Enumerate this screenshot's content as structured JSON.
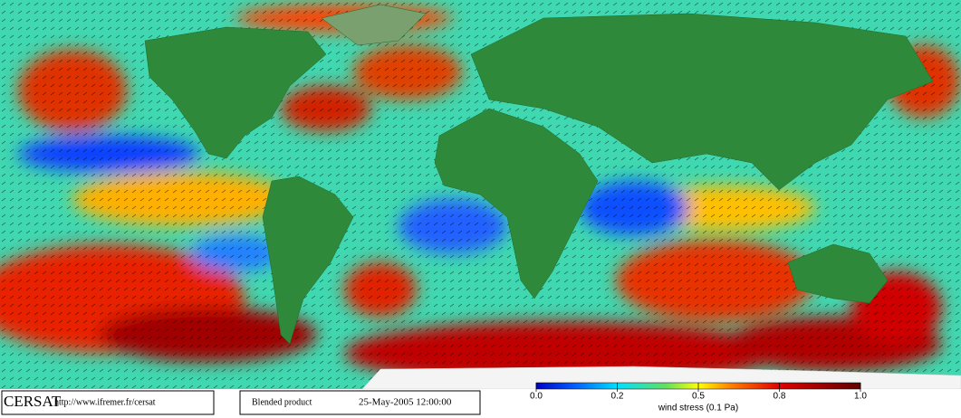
{
  "footer": {
    "logo": "CERSAT",
    "url": "http://www.ifremer.fr/cersat",
    "product": "Blended product",
    "date": "25-May-2005 12:00:00"
  },
  "colorbar": {
    "label": "wind stress (0.1 Pa)",
    "ticks": [
      {
        "value": 0,
        "label": "0.0"
      },
      0.2,
      0.5,
      0.8,
      {
        "value": 1,
        "label": "1.0"
      }
    ]
  }
}
